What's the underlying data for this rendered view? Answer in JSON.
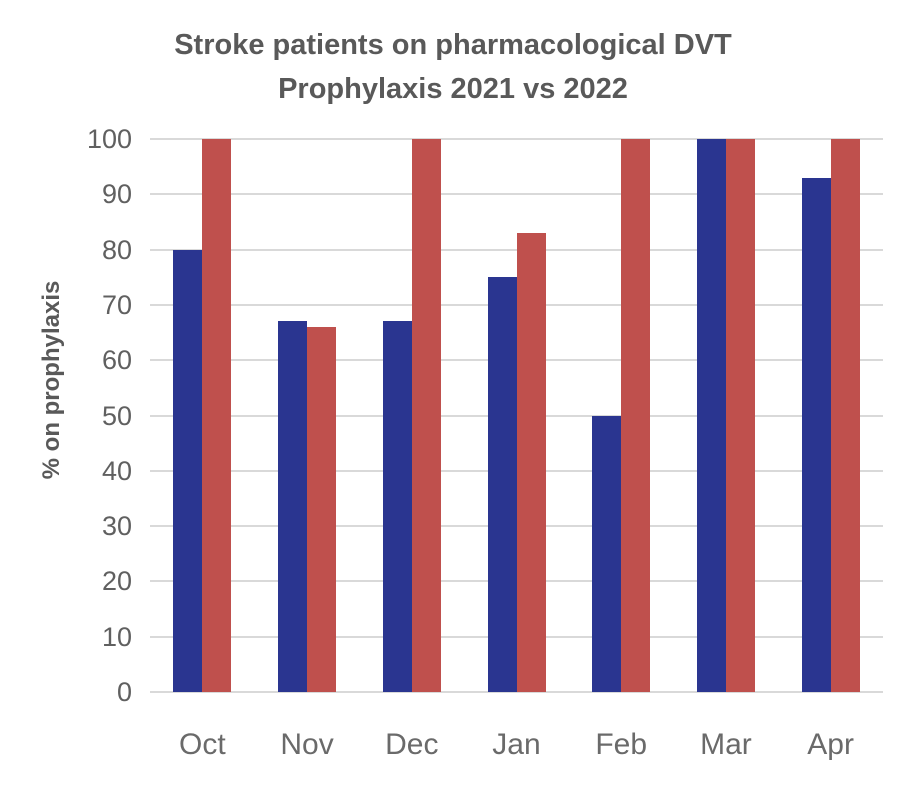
{
  "page": {
    "background": "#ffffff"
  },
  "chart_data": {
    "type": "bar",
    "title": "Stroke patients on pharmacological DVT Prophylaxis 2021 vs 2022",
    "xlabel": "",
    "ylabel": "% on prophylaxis",
    "categories": [
      "Oct",
      "Nov",
      "Dec",
      "Jan",
      "Feb",
      "Mar",
      "Apr"
    ],
    "series": [
      {
        "name": "2021",
        "color": "#2A3590",
        "values": [
          80,
          67,
          67,
          75,
          50,
          100,
          93
        ]
      },
      {
        "name": "2022",
        "color": "#BF504D",
        "values": [
          100,
          66,
          100,
          83,
          100,
          100,
          100
        ]
      }
    ],
    "ylim": [
      0,
      100
    ],
    "yticks": [
      0,
      10,
      20,
      30,
      40,
      50,
      60,
      70,
      80,
      90,
      100
    ],
    "grid": true,
    "gridline_color": "#D9D9D9",
    "axis_line_color": "#D9D9D9",
    "legend": "none",
    "title_color": "#595959",
    "axis_text_color": "#606060"
  }
}
